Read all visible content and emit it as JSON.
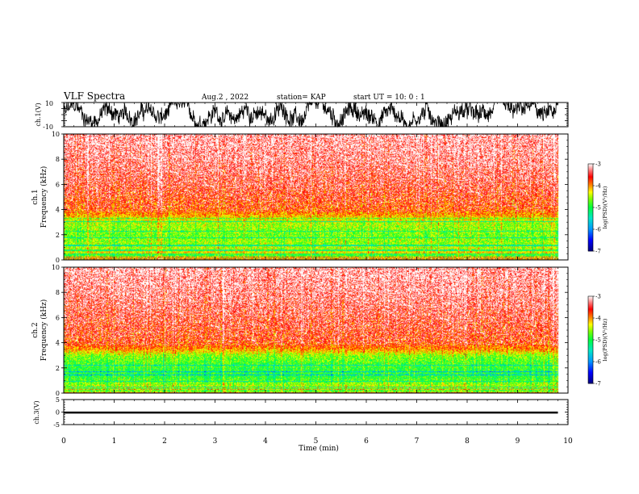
{
  "header": {
    "title": "VLF Spectra",
    "date": "Aug.2 , 2022",
    "station": "station= KAP",
    "start": "start UT = 10: 0 : 1"
  },
  "colors": {
    "background": "#ffffff",
    "axis": "#000000",
    "waveform": "#000000",
    "colormap": [
      "#000080",
      "#0000ff",
      "#00c0ff",
      "#00ff80",
      "#80ff00",
      "#ffff00",
      "#ff8000",
      "#ff0000",
      "#ff8080",
      "#ffffff"
    ]
  },
  "chart_data": [
    {
      "type": "line",
      "name": "ch1-waveform",
      "ylabel": "ch.1(V)",
      "ylim": [
        -10,
        10
      ],
      "yticks": [
        "10",
        "-10"
      ],
      "xlim": [
        0,
        10
      ],
      "envelope": {
        "min": -10,
        "max": 10,
        "typical_low": -8,
        "typical_high": 8
      },
      "time_span_min": [
        0,
        9.8
      ]
    },
    {
      "type": "heatmap",
      "name": "ch1-spectrogram",
      "ylabel": "ch.1\nFrequency (kHz)",
      "ylim": [
        0,
        10
      ],
      "yticks": [
        "0",
        "2",
        "4",
        "6",
        "8",
        "10"
      ],
      "xlim": [
        0,
        10
      ],
      "data_end_min": 9.8,
      "band_profile": [
        {
          "f_khz": 0.0,
          "log_psd": -3.5
        },
        {
          "f_khz": 0.5,
          "log_psd": -4.2
        },
        {
          "f_khz": 1.0,
          "log_psd": -4.5
        },
        {
          "f_khz": 1.5,
          "log_psd": -4.6
        },
        {
          "f_khz": 2.0,
          "log_psd": -4.7
        },
        {
          "f_khz": 2.5,
          "log_psd": -4.6
        },
        {
          "f_khz": 3.0,
          "log_psd": -4.5
        },
        {
          "f_khz": 3.5,
          "log_psd": -4.1
        },
        {
          "f_khz": 4.0,
          "log_psd": -3.8
        },
        {
          "f_khz": 6.0,
          "log_psd": -3.5
        },
        {
          "f_khz": 8.0,
          "log_psd": -3.3
        },
        {
          "f_khz": 10.0,
          "log_psd": -3.2
        }
      ],
      "colorbar": {
        "label": "log(PSD)(V²/Hz)",
        "range": [
          -7,
          -3
        ],
        "ticks": [
          "-3",
          "-4",
          "-5",
          "-6",
          "-7"
        ]
      }
    },
    {
      "type": "heatmap",
      "name": "ch2-spectrogram",
      "ylabel": "ch.2\nFrequency (kHz)",
      "ylim": [
        0,
        10
      ],
      "yticks": [
        "0",
        "2",
        "4",
        "6",
        "8",
        "10"
      ],
      "xlim": [
        0,
        10
      ],
      "data_end_min": 9.8,
      "band_profile": [
        {
          "f_khz": 0.0,
          "log_psd": -3.6
        },
        {
          "f_khz": 0.5,
          "log_psd": -4.4
        },
        {
          "f_khz": 1.0,
          "log_psd": -4.8
        },
        {
          "f_khz": 1.5,
          "log_psd": -5.0
        },
        {
          "f_khz": 2.0,
          "log_psd": -4.9
        },
        {
          "f_khz": 2.5,
          "log_psd": -4.8
        },
        {
          "f_khz": 3.0,
          "log_psd": -4.6
        },
        {
          "f_khz": 3.5,
          "log_psd": -4.0
        },
        {
          "f_khz": 4.0,
          "log_psd": -3.7
        },
        {
          "f_khz": 6.0,
          "log_psd": -3.5
        },
        {
          "f_khz": 8.0,
          "log_psd": -3.3
        },
        {
          "f_khz": 10.0,
          "log_psd": -3.2
        }
      ],
      "colorbar": {
        "label": "log(PSD)(V²/Hz)",
        "range": [
          -7,
          -3
        ],
        "ticks": [
          "-3",
          "-4",
          "-5",
          "-6",
          "-7"
        ]
      }
    },
    {
      "type": "line",
      "name": "ch3-waveform",
      "ylabel": "ch.3(V)",
      "ylim": [
        -5,
        5
      ],
      "yticks": [
        "5",
        "0",
        "-5"
      ],
      "xlim": [
        0,
        10
      ],
      "envelope": {
        "min": -0.6,
        "max": 0.2
      },
      "xlabel": "Time (min)",
      "xticks": [
        "0",
        "1",
        "2",
        "3",
        "4",
        "5",
        "6",
        "7",
        "8",
        "9",
        "10"
      ]
    }
  ]
}
